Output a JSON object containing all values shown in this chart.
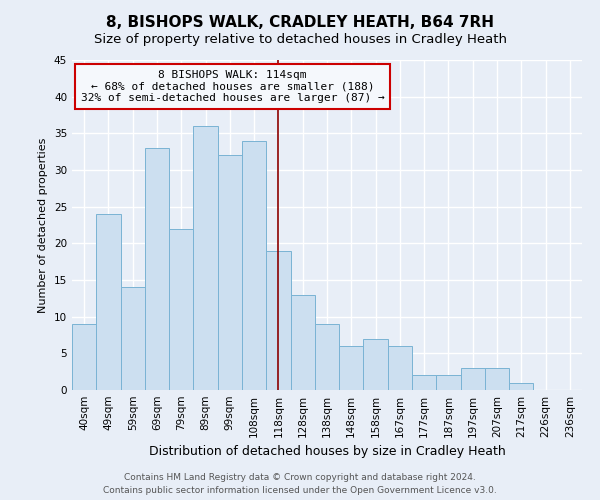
{
  "title": "8, BISHOPS WALK, CRADLEY HEATH, B64 7RH",
  "subtitle": "Size of property relative to detached houses in Cradley Heath",
  "xlabel": "Distribution of detached houses by size in Cradley Heath",
  "ylabel": "Number of detached properties",
  "bar_labels": [
    "40sqm",
    "49sqm",
    "59sqm",
    "69sqm",
    "79sqm",
    "89sqm",
    "99sqm",
    "108sqm",
    "118sqm",
    "128sqm",
    "138sqm",
    "148sqm",
    "158sqm",
    "167sqm",
    "177sqm",
    "187sqm",
    "197sqm",
    "207sqm",
    "217sqm",
    "226sqm",
    "236sqm"
  ],
  "bar_values": [
    9,
    24,
    14,
    33,
    22,
    36,
    32,
    34,
    19,
    13,
    9,
    6,
    7,
    6,
    2,
    2,
    3,
    3,
    1,
    0,
    0
  ],
  "bar_color": "#ccdff0",
  "bar_edge_color": "#7ab3d4",
  "ref_line_index": 8,
  "ref_line_color": "#8b0000",
  "annotation_title": "8 BISHOPS WALK: 114sqm",
  "annotation_line1": "← 68% of detached houses are smaller (188)",
  "annotation_line2": "32% of semi-detached houses are larger (87) →",
  "annotation_box_edge": "#cc0000",
  "annotation_box_fill": "#f5f8fc",
  "ylim": [
    0,
    45
  ],
  "yticks": [
    0,
    5,
    10,
    15,
    20,
    25,
    30,
    35,
    40,
    45
  ],
  "footer1": "Contains HM Land Registry data © Crown copyright and database right 2024.",
  "footer2": "Contains public sector information licensed under the Open Government Licence v3.0.",
  "bg_color": "#e8eef7",
  "plot_bg_color": "#e8eef7",
  "grid_color": "#ffffff",
  "title_fontsize": 11,
  "subtitle_fontsize": 9.5,
  "ylabel_fontsize": 8,
  "xlabel_fontsize": 9,
  "tick_fontsize": 7.5,
  "annotation_fontsize": 8,
  "footer_fontsize": 6.5
}
